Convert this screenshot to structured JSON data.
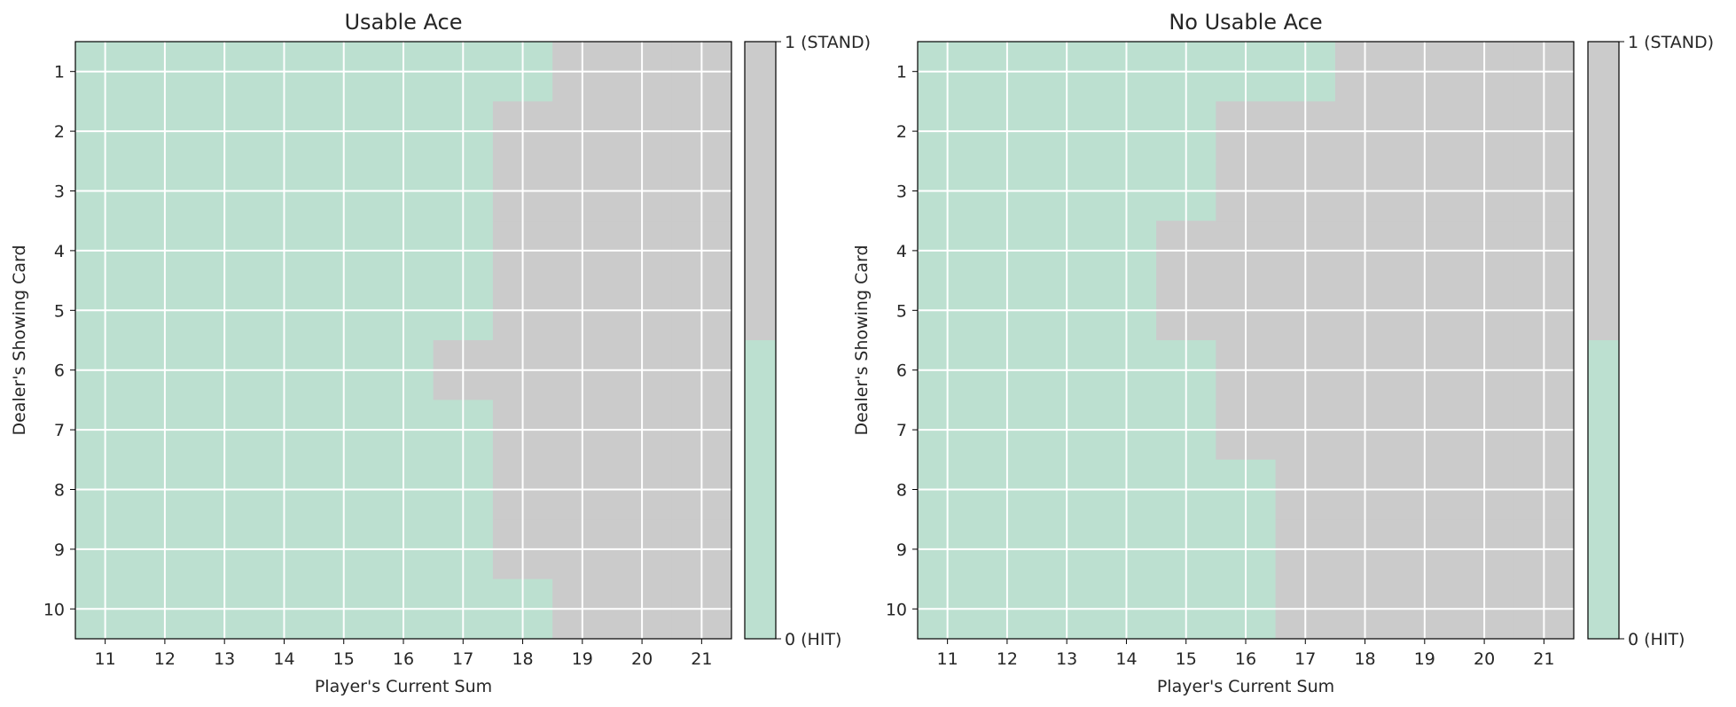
{
  "chart_data": [
    {
      "type": "heatmap",
      "title": "Usable Ace",
      "xlabel": "Player's Current Sum",
      "ylabel": "Dealer's Showing Card",
      "x": [
        11,
        12,
        13,
        14,
        15,
        16,
        17,
        18,
        19,
        20,
        21
      ],
      "y": [
        1,
        2,
        3,
        4,
        5,
        6,
        7,
        8,
        9,
        10
      ],
      "values": [
        [
          0,
          0,
          0,
          0,
          0,
          0,
          0,
          0,
          1,
          1,
          1
        ],
        [
          0,
          0,
          0,
          0,
          0,
          0,
          0,
          1,
          1,
          1,
          1
        ],
        [
          0,
          0,
          0,
          0,
          0,
          0,
          0,
          1,
          1,
          1,
          1
        ],
        [
          0,
          0,
          0,
          0,
          0,
          0,
          0,
          1,
          1,
          1,
          1
        ],
        [
          0,
          0,
          0,
          0,
          0,
          0,
          0,
          1,
          1,
          1,
          1
        ],
        [
          0,
          0,
          0,
          0,
          0,
          0,
          1,
          1,
          1,
          1,
          1
        ],
        [
          0,
          0,
          0,
          0,
          0,
          0,
          0,
          1,
          1,
          1,
          1
        ],
        [
          0,
          0,
          0,
          0,
          0,
          0,
          0,
          1,
          1,
          1,
          1
        ],
        [
          0,
          0,
          0,
          0,
          0,
          0,
          0,
          1,
          1,
          1,
          1
        ],
        [
          0,
          0,
          0,
          0,
          0,
          0,
          0,
          0,
          1,
          1,
          1
        ]
      ],
      "grid": true,
      "colors": {
        "0": "#bce0d0",
        "1": "#cbcbcb"
      },
      "colorbar": {
        "ticks": [
          0,
          1
        ],
        "labels": [
          "0 (HIT)",
          "1 (STAND)"
        ]
      }
    },
    {
      "type": "heatmap",
      "title": "No Usable Ace",
      "xlabel": "Player's Current Sum",
      "ylabel": "Dealer's Showing Card",
      "x": [
        11,
        12,
        13,
        14,
        15,
        16,
        17,
        18,
        19,
        20,
        21
      ],
      "y": [
        1,
        2,
        3,
        4,
        5,
        6,
        7,
        8,
        9,
        10
      ],
      "values": [
        [
          0,
          0,
          0,
          0,
          0,
          0,
          0,
          1,
          1,
          1,
          1
        ],
        [
          0,
          0,
          0,
          0,
          0,
          1,
          1,
          1,
          1,
          1,
          1
        ],
        [
          0,
          0,
          0,
          0,
          0,
          1,
          1,
          1,
          1,
          1,
          1
        ],
        [
          0,
          0,
          0,
          0,
          1,
          1,
          1,
          1,
          1,
          1,
          1
        ],
        [
          0,
          0,
          0,
          0,
          1,
          1,
          1,
          1,
          1,
          1,
          1
        ],
        [
          0,
          0,
          0,
          0,
          0,
          1,
          1,
          1,
          1,
          1,
          1
        ],
        [
          0,
          0,
          0,
          0,
          0,
          1,
          1,
          1,
          1,
          1,
          1
        ],
        [
          0,
          0,
          0,
          0,
          0,
          0,
          1,
          1,
          1,
          1,
          1
        ],
        [
          0,
          0,
          0,
          0,
          0,
          0,
          1,
          1,
          1,
          1,
          1
        ],
        [
          0,
          0,
          0,
          0,
          0,
          0,
          1,
          1,
          1,
          1,
          1
        ]
      ],
      "grid": true,
      "colors": {
        "0": "#bce0d0",
        "1": "#cbcbcb"
      },
      "colorbar": {
        "ticks": [
          0,
          1
        ],
        "labels": [
          "0 (HIT)",
          "1 (STAND)"
        ]
      }
    }
  ]
}
